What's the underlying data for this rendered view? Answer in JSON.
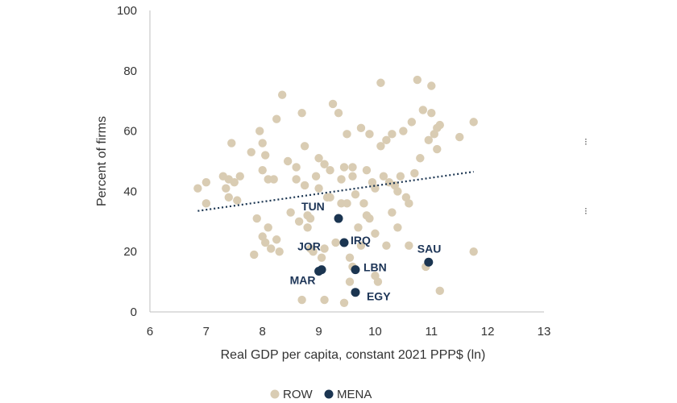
{
  "chart_data": {
    "type": "scatter",
    "xlabel": "Real GDP per capita, constant 2021 PPP$ (ln)",
    "ylabel": "Percent of firms",
    "xlim": [
      6,
      13
    ],
    "ylim": [
      0,
      100
    ],
    "x_ticks": [
      "6",
      "7",
      "8",
      "9",
      "10",
      "11",
      "12",
      "13"
    ],
    "y_ticks": [
      "0",
      "20",
      "40",
      "60",
      "80",
      "100"
    ],
    "grid": false,
    "legend_position": "bottom",
    "series": [
      {
        "name": "ROW",
        "color": "#d9ccb3",
        "points": [
          [
            6.85,
            41
          ],
          [
            7.0,
            43
          ],
          [
            7.0,
            36
          ],
          [
            7.3,
            45
          ],
          [
            7.4,
            44
          ],
          [
            7.35,
            41
          ],
          [
            7.4,
            38
          ],
          [
            7.45,
            56
          ],
          [
            7.5,
            43
          ],
          [
            7.55,
            37
          ],
          [
            7.6,
            45
          ],
          [
            7.8,
            53
          ],
          [
            7.85,
            19
          ],
          [
            7.9,
            31
          ],
          [
            7.95,
            60
          ],
          [
            8.0,
            56
          ],
          [
            8.0,
            47
          ],
          [
            8.0,
            25
          ],
          [
            8.05,
            52
          ],
          [
            8.05,
            23
          ],
          [
            8.1,
            28
          ],
          [
            8.1,
            44
          ],
          [
            8.15,
            21
          ],
          [
            8.2,
            44
          ],
          [
            8.25,
            64
          ],
          [
            8.25,
            24
          ],
          [
            8.3,
            20
          ],
          [
            8.35,
            72
          ],
          [
            8.45,
            50
          ],
          [
            8.5,
            33
          ],
          [
            8.6,
            48
          ],
          [
            8.6,
            44
          ],
          [
            8.65,
            30
          ],
          [
            8.7,
            66
          ],
          [
            8.7,
            4
          ],
          [
            8.75,
            55
          ],
          [
            8.75,
            42
          ],
          [
            8.8,
            32
          ],
          [
            8.8,
            28
          ],
          [
            8.85,
            31
          ],
          [
            8.85,
            21
          ],
          [
            8.95,
            45
          ],
          [
            9.0,
            41
          ],
          [
            9.0,
            51
          ],
          [
            9.05,
            18
          ],
          [
            9.1,
            49
          ],
          [
            9.1,
            21
          ],
          [
            9.15,
            38
          ],
          [
            9.2,
            47
          ],
          [
            9.25,
            69
          ],
          [
            9.3,
            23
          ],
          [
            9.35,
            66
          ],
          [
            9.4,
            44
          ],
          [
            9.45,
            48
          ],
          [
            9.5,
            59
          ],
          [
            9.5,
            36
          ],
          [
            9.55,
            18
          ],
          [
            9.6,
            48
          ],
          [
            9.6,
            45
          ],
          [
            9.65,
            39
          ],
          [
            9.7,
            28
          ],
          [
            9.75,
            61
          ],
          [
            9.8,
            36
          ],
          [
            9.85,
            47
          ],
          [
            9.9,
            59
          ],
          [
            9.9,
            31
          ],
          [
            9.95,
            43
          ],
          [
            10.0,
            26
          ],
          [
            10.0,
            12
          ],
          [
            10.0,
            41
          ],
          [
            10.05,
            10
          ],
          [
            10.1,
            76
          ],
          [
            10.1,
            55
          ],
          [
            10.15,
            45
          ],
          [
            10.2,
            57
          ],
          [
            10.25,
            43
          ],
          [
            10.3,
            59
          ],
          [
            10.3,
            33
          ],
          [
            10.35,
            42
          ],
          [
            10.4,
            28
          ],
          [
            10.45,
            45
          ],
          [
            10.5,
            60
          ],
          [
            10.55,
            38
          ],
          [
            10.6,
            36
          ],
          [
            10.65,
            63
          ],
          [
            10.7,
            46
          ],
          [
            10.75,
            77
          ],
          [
            10.8,
            51
          ],
          [
            10.85,
            67
          ],
          [
            10.9,
            15
          ],
          [
            10.95,
            57
          ],
          [
            11.0,
            75
          ],
          [
            11.0,
            66
          ],
          [
            11.05,
            59
          ],
          [
            11.1,
            61
          ],
          [
            11.1,
            54
          ],
          [
            11.15,
            62
          ],
          [
            11.15,
            7
          ],
          [
            11.5,
            58
          ],
          [
            11.75,
            63
          ],
          [
            11.75,
            20
          ],
          [
            9.1,
            4
          ],
          [
            9.45,
            3
          ],
          [
            9.55,
            10
          ],
          [
            9.2,
            38
          ],
          [
            9.4,
            36
          ],
          [
            10.2,
            22
          ],
          [
            10.6,
            22
          ],
          [
            9.75,
            22
          ],
          [
            8.9,
            20
          ],
          [
            9.6,
            15
          ],
          [
            9.85,
            32
          ],
          [
            10.4,
            40
          ]
        ]
      },
      {
        "name": "MENA",
        "color": "#1b3551",
        "points": [
          {
            "label": "TUN",
            "x": 9.35,
            "y": 31
          },
          {
            "label": "IRQ",
            "x": 9.45,
            "y": 23
          },
          {
            "label": "SAU",
            "x": 10.95,
            "y": 16.5
          },
          {
            "label": "JOR",
            "x": 9.05,
            "y": 14
          },
          {
            "label": "LBN",
            "x": 9.65,
            "y": 14
          },
          {
            "label": "MAR",
            "x": 9.0,
            "y": 13.5
          },
          {
            "label": "EGY",
            "x": 9.65,
            "y": 6.5
          }
        ]
      }
    ],
    "trendline": {
      "style": "dotted",
      "color": "#1b3551",
      "from": [
        6.85,
        33.5
      ],
      "to": [
        11.75,
        46.5
      ]
    }
  },
  "legend": {
    "row_label": "ROW",
    "mena_label": "MENA"
  },
  "stray_marks": [
    "⁝",
    "⁝"
  ]
}
